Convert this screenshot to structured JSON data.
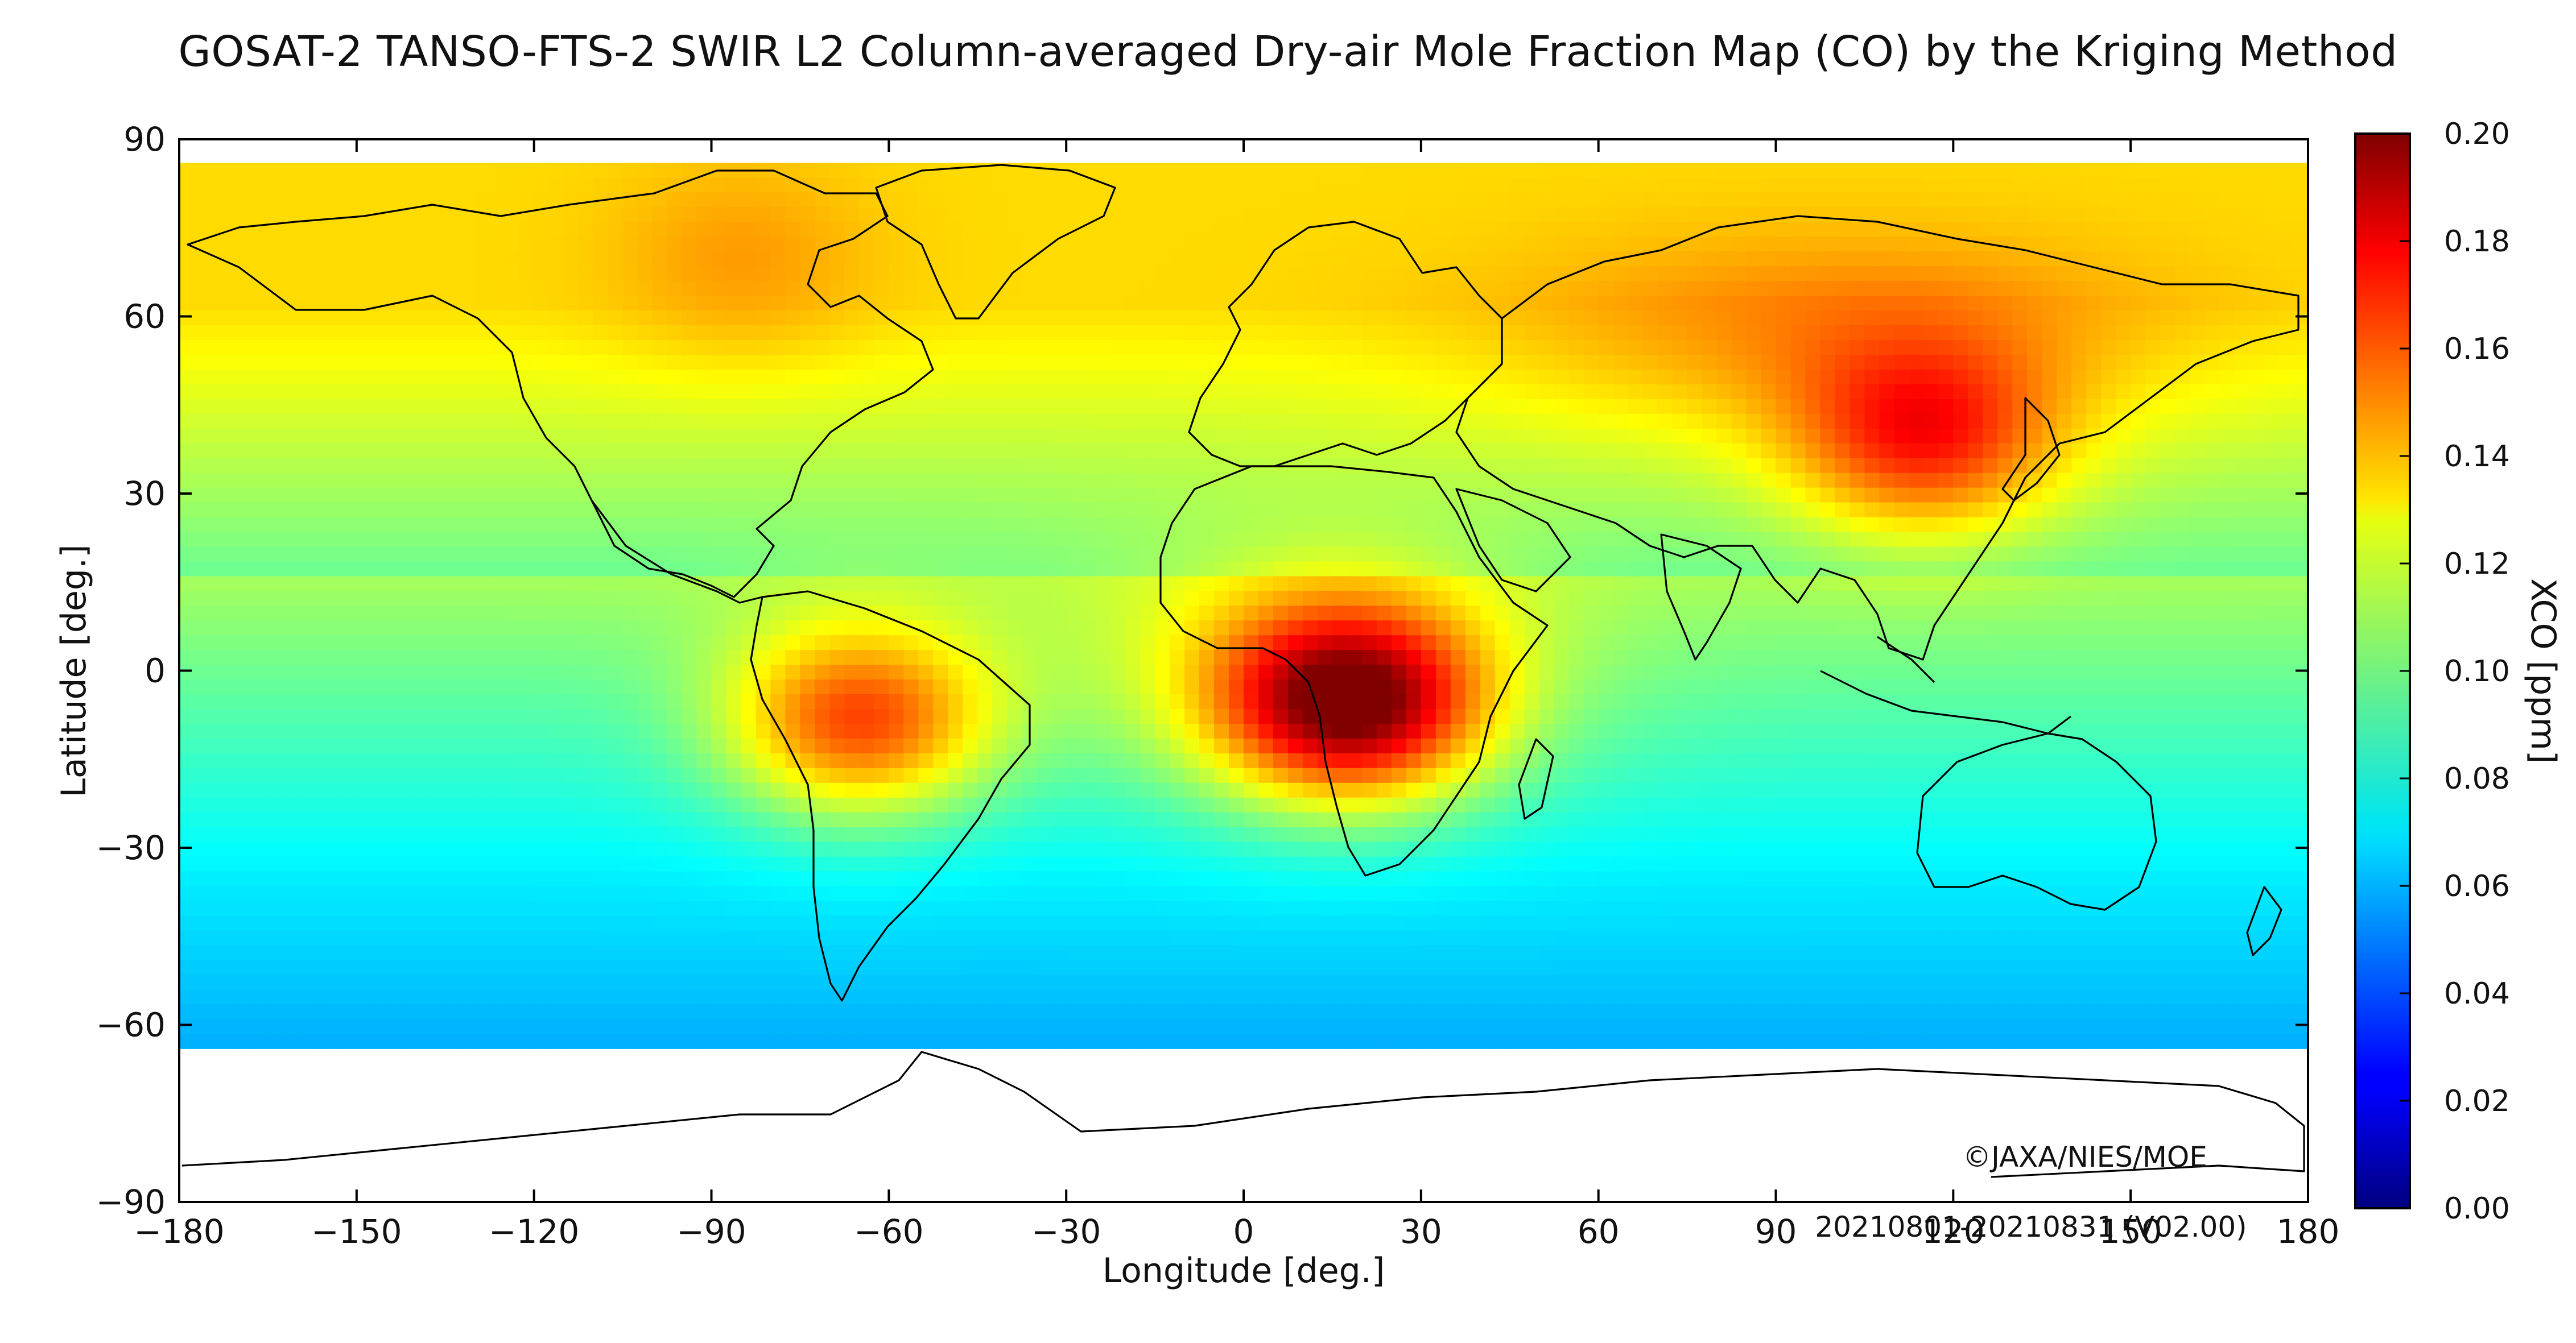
{
  "title": "GOSAT-2 TANSO-FTS-2 SWIR L2 Column-averaged Dry-air Mole Fraction Map (CO) by the Kriging Method",
  "xlabel": "Longitude [deg.]",
  "ylabel": "Latitude [deg.]",
  "copyright": "©JAXA/NIES/MOE",
  "period": "20210801-20210831 (V02.00)",
  "x_ticks": [
    "−180",
    "−150",
    "−120",
    "−90",
    "−60",
    "−30",
    "0",
    "30",
    "60",
    "90",
    "120",
    "150",
    "180"
  ],
  "y_ticks": [
    "90",
    "60",
    "30",
    "0",
    "−30",
    "−60",
    "−90"
  ],
  "colorbar": {
    "label": "XCO [ppm]",
    "ticks": [
      "0.00",
      "0.02",
      "0.04",
      "0.06",
      "0.08",
      "0.10",
      "0.12",
      "0.14",
      "0.16",
      "0.18",
      "0.20"
    ],
    "range": [
      0.0,
      0.2
    ],
    "colormap": "jet"
  },
  "chart_data": {
    "type": "heatmap",
    "title": "GOSAT-2 TANSO-FTS-2 SWIR L2 Column-averaged Dry-air Mole Fraction Map (CO) by the Kriging Method",
    "xlabel": "Longitude [deg.]",
    "ylabel": "Latitude [deg.]",
    "xlim": [
      -180,
      180
    ],
    "ylim": [
      -90,
      90
    ],
    "value_label": "XCO [ppm]",
    "value_range": [
      0.0,
      0.2
    ],
    "data_coverage_lat": [
      -62,
      86
    ],
    "hotspots": [
      {
        "name": "Central Africa",
        "lon": 18,
        "lat": -5,
        "value": 0.195
      },
      {
        "name": "South America (Amazon)",
        "lon": -65,
        "lat": -8,
        "value": 0.165
      },
      {
        "name": "Eastern Siberia",
        "lon": 115,
        "lat": 40,
        "value": 0.17
      },
      {
        "name": "Canada / Hudson Bay",
        "lon": -85,
        "lat": 70,
        "value": 0.145
      }
    ],
    "background_values": {
      "tropics_ocean": 0.09,
      "southern_ocean": 0.06,
      "northern_midlat": 0.12
    }
  }
}
